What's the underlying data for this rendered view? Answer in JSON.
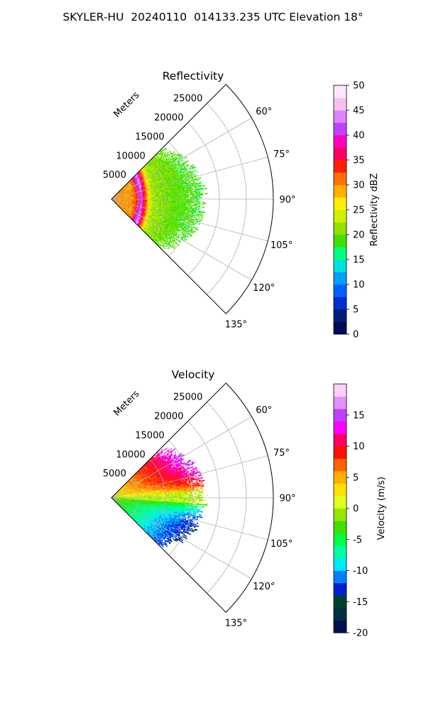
{
  "figure_title": "SKYLER-HU  20240110  014133.235 UTC Elevation 18°",
  "chart_data": [
    {
      "type": "heatmap",
      "subtype": "polar-sector (PPI radar)",
      "title": "Reflectivity",
      "radial_label": "Meters",
      "r_ticks": [
        "5000",
        "10000",
        "15000",
        "20000",
        "25000"
      ],
      "r_lim": [
        0,
        30000
      ],
      "theta_ticks": [
        "60°",
        "75°",
        "90°",
        "105°",
        "120°",
        "135°"
      ],
      "theta_range_deg": [
        45,
        135
      ],
      "grid": true,
      "colorbar": {
        "label": "Reflectivity dBZ",
        "range": [
          0,
          50
        ],
        "ticks": [
          "0",
          "5",
          "10",
          "15",
          "20",
          "25",
          "30",
          "35",
          "40",
          "45",
          "50"
        ]
      },
      "data_extent_m": 17000,
      "features": "Ring of high reflectivity (35–40 dBZ) near 5000–7000 m, orange/yellow 25–30 dBZ inside, green 15–22 dBZ beyond to ~17000 m"
    },
    {
      "type": "heatmap",
      "subtype": "polar-sector (PPI radar)",
      "title": "Velocity",
      "radial_label": "Meters",
      "r_ticks": [
        "5000",
        "10000",
        "15000",
        "20000",
        "25000"
      ],
      "r_lim": [
        0,
        30000
      ],
      "theta_ticks": [
        "60°",
        "75°",
        "90°",
        "105°",
        "120°",
        "135°"
      ],
      "theta_range_deg": [
        45,
        135
      ],
      "grid": true,
      "colorbar": {
        "label": "Velocity (m/s)",
        "range": [
          -20,
          20
        ],
        "ticks": [
          "-20",
          "-15",
          "-10",
          "-5",
          "0",
          "5",
          "10",
          "15"
        ]
      },
      "data_extent_m": 17000,
      "features": "Positive velocities (red/magenta up to ~15 m/s) in the upper azimuths, negative (green/cyan to ~-12 m/s) in the lower azimuths, near-zero band around 90°"
    }
  ],
  "colors": {
    "grid": "#b0b0b0",
    "refl_colormap": [
      "#000a5a",
      "#00207a",
      "#0030d0",
      "#0060ff",
      "#00a0ff",
      "#00e0e0",
      "#00ff80",
      "#40e000",
      "#90e000",
      "#d0f000",
      "#ffee00",
      "#ffb000",
      "#ff7000",
      "#ff2000",
      "#ff0060",
      "#ff00c0",
      "#c040ff",
      "#e080ff",
      "#f8c0f0",
      "#ffe8ff"
    ],
    "vel_colormap": [
      "#001050",
      "#003040",
      "#004030",
      "#0020d0",
      "#0080ff",
      "#00e8ff",
      "#00ffa0",
      "#00ff40",
      "#40e000",
      "#90e800",
      "#e0ff20",
      "#ffe000",
      "#ffb000",
      "#ff6000",
      "#ff1000",
      "#ff0060",
      "#ff00ff",
      "#c040ff",
      "#e090ff",
      "#ffd0f8"
    ]
  }
}
